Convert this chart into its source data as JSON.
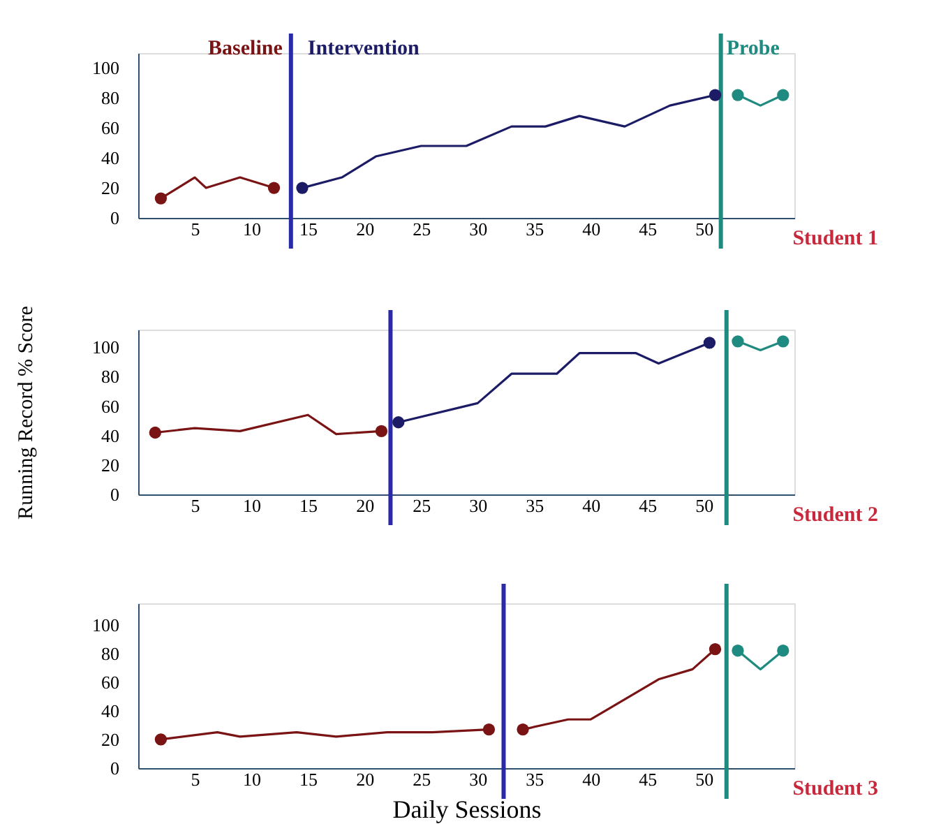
{
  "chart_data": [
    {
      "type": "line",
      "xlim": [
        0,
        58
      ],
      "xticks": [
        5,
        10,
        15,
        20,
        25,
        30,
        35,
        40,
        45,
        50
      ],
      "ylim": [
        0,
        110
      ],
      "yticks": [
        0,
        20,
        40,
        60,
        80,
        100
      ],
      "grid": false,
      "line_style": "solid",
      "series": [
        {
          "name": "Baseline",
          "color": "#7a1414",
          "x": [
            2,
            5,
            6,
            9,
            12
          ],
          "values": [
            13,
            27,
            20,
            27,
            20
          ]
        },
        {
          "name": "Intervention",
          "color": "#1c1c66",
          "x": [
            14.5,
            18,
            21,
            25,
            29,
            33,
            36,
            39,
            43,
            47,
            51
          ],
          "values": [
            20,
            27,
            41,
            48,
            48,
            61,
            61,
            68,
            61,
            75,
            82
          ]
        },
        {
          "name": "Probe",
          "color": "#1e8a80",
          "x": [
            53,
            55,
            57
          ],
          "values": [
            82,
            75,
            82
          ]
        },
        {
          "type": "scatter",
          "marker": "circle",
          "color": "#7a1414",
          "x": [
            2,
            12
          ],
          "values": [
            13,
            20
          ]
        },
        {
          "type": "scatter",
          "marker": "circle",
          "color": "#1c1c66",
          "x": [
            14.5,
            51
          ],
          "values": [
            20,
            82
          ]
        },
        {
          "type": "scatter",
          "marker": "circle",
          "color": "#1e8a80",
          "x": [
            53,
            57
          ],
          "values": [
            82,
            82
          ]
        }
      ],
      "ref_lines": [
        {
          "axis": "x",
          "value": 13.5,
          "color": "#2a2aa8"
        },
        {
          "axis": "x",
          "value": 51.5,
          "color": "#1e8a80"
        }
      ],
      "annotations": [
        "Student 1"
      ]
    },
    {
      "type": "line",
      "xlim": [
        0,
        58
      ],
      "xticks": [
        5,
        10,
        15,
        20,
        25,
        30,
        35,
        40,
        45,
        50
      ],
      "ylim": [
        0,
        112
      ],
      "yticks": [
        0,
        20,
        40,
        60,
        80,
        100
      ],
      "ylabel": "Running Record % Score",
      "grid": false,
      "line_style": "solid",
      "series": [
        {
          "color": "#7a1414",
          "x": [
            1.5,
            5,
            9,
            15,
            17.5,
            21.5
          ],
          "values": [
            42,
            45,
            43,
            54,
            41,
            43
          ]
        },
        {
          "color": "#1c1c66",
          "x": [
            23,
            30,
            33,
            37,
            39,
            44,
            46,
            50.5
          ],
          "values": [
            49,
            62,
            82,
            82,
            96,
            96,
            89,
            103
          ]
        },
        {
          "color": "#1e8a80",
          "x": [
            53,
            55,
            57
          ],
          "values": [
            104,
            98,
            104
          ]
        },
        {
          "type": "scatter",
          "marker": "circle",
          "color": "#7a1414",
          "x": [
            1.5,
            21.5
          ],
          "values": [
            42,
            43
          ]
        },
        {
          "type": "scatter",
          "marker": "circle",
          "color": "#1c1c66",
          "x": [
            23,
            50.5
          ],
          "values": [
            49,
            103
          ]
        },
        {
          "type": "scatter",
          "marker": "circle",
          "color": "#1e8a80",
          "x": [
            53,
            57
          ],
          "values": [
            104,
            104
          ]
        }
      ],
      "ref_lines": [
        {
          "axis": "x",
          "value": 22.3,
          "color": "#2a2aa8"
        },
        {
          "axis": "x",
          "value": 52,
          "color": "#1e8a80"
        }
      ],
      "annotations": [
        "Student 2"
      ]
    },
    {
      "type": "line",
      "xlim": [
        0,
        58
      ],
      "xticks": [
        5,
        10,
        15,
        20,
        25,
        30,
        35,
        40,
        45,
        50
      ],
      "ylim": [
        0,
        115
      ],
      "yticks": [
        0,
        20,
        40,
        60,
        80,
        100
      ],
      "xlabel": "Daily Sessions",
      "grid": false,
      "line_style": "solid",
      "series": [
        {
          "color": "#7a1414",
          "x": [
            2,
            7,
            9,
            14,
            17.5,
            22,
            26,
            31
          ],
          "values": [
            20,
            25,
            22,
            25,
            22,
            25,
            25,
            27
          ]
        },
        {
          "color": "#7a1414",
          "x": [
            34,
            38,
            40,
            46,
            49,
            51
          ],
          "values": [
            27,
            34,
            34,
            62,
            69,
            83
          ]
        },
        {
          "color": "#1e8a80",
          "x": [
            53,
            55,
            57
          ],
          "values": [
            82,
            69,
            82
          ]
        },
        {
          "type": "scatter",
          "marker": "circle",
          "color": "#7a1414",
          "x": [
            2,
            31
          ],
          "values": [
            20,
            27
          ]
        },
        {
          "type": "scatter",
          "marker": "circle",
          "color": "#7a1414",
          "x": [
            34,
            51
          ],
          "values": [
            27,
            83
          ]
        },
        {
          "type": "scatter",
          "marker": "circle",
          "color": "#1e8a80",
          "x": [
            53,
            57
          ],
          "values": [
            82,
            82
          ]
        }
      ],
      "ref_lines": [
        {
          "axis": "x",
          "value": 32.3,
          "color": "#2a2aa8"
        },
        {
          "axis": "x",
          "value": 52,
          "color": "#1e8a80"
        }
      ],
      "annotations": [
        "Student 3"
      ]
    }
  ]
}
